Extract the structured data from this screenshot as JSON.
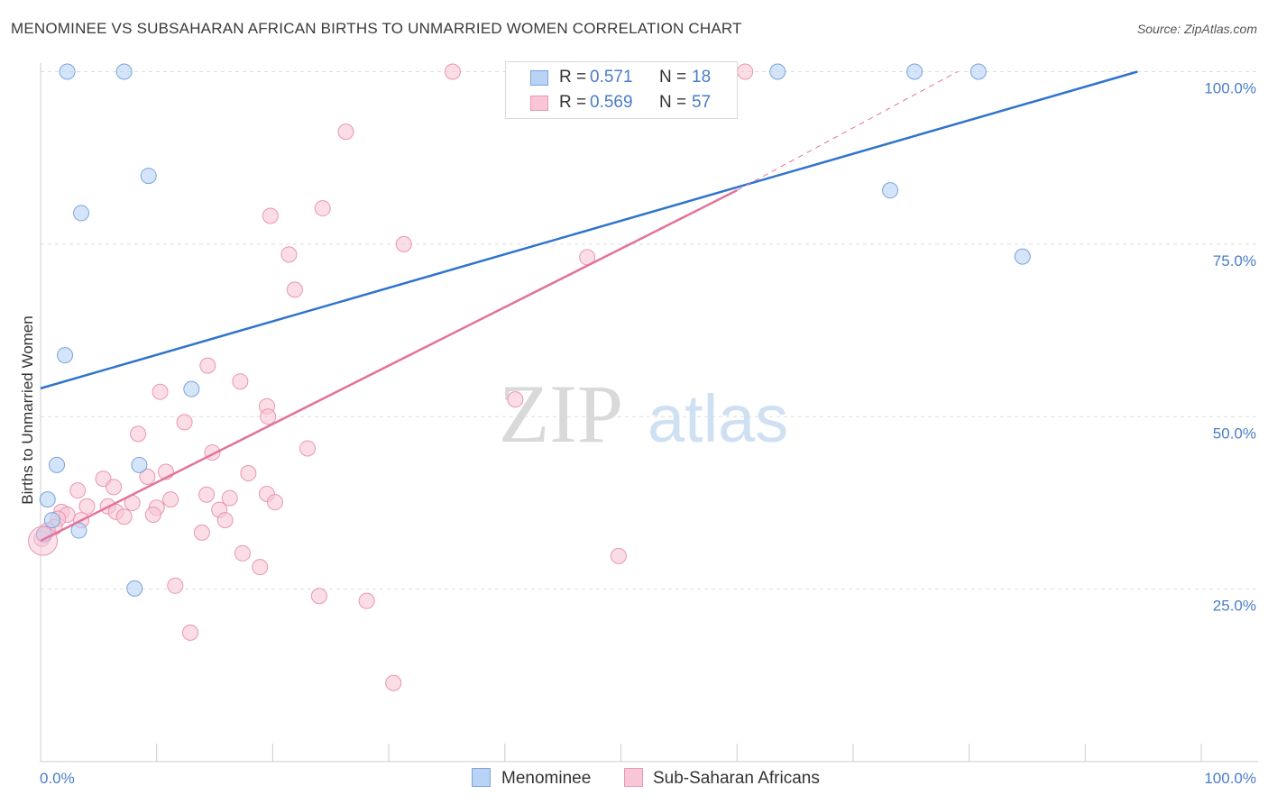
{
  "header": {
    "title": "MENOMINEE VS SUBSAHARAN AFRICAN BIRTHS TO UNMARRIED WOMEN CORRELATION CHART",
    "source": "Source: ZipAtlas.com"
  },
  "watermark": {
    "zip": "ZIP",
    "atlas": "atlas"
  },
  "colors": {
    "menominee_fill": "#b8d3f5",
    "menominee_stroke": "#7ba3dd",
    "menominee_line": "#2f74cc",
    "subsaharan_fill": "#f8c6d6",
    "subsaharan_stroke": "#e996b3",
    "subsaharan_line": "#e2739c",
    "tick_text": "#4a7cc9",
    "grid": "#dddddd"
  },
  "legend_top": {
    "rows": [
      {
        "r_label": "R =",
        "r_value": "0.571",
        "n_label": "N =",
        "n_value": "18"
      },
      {
        "r_label": "R =",
        "r_value": "0.569",
        "n_label": "N =",
        "n_value": "57"
      }
    ]
  },
  "legend_bottom": {
    "items": [
      {
        "label": "Menominee"
      },
      {
        "label": "Sub-Saharan Africans"
      }
    ]
  },
  "chart_data": {
    "type": "scatter",
    "title": "MENOMINEE VS SUBSAHARAN AFRICAN BIRTHS TO UNMARRIED WOMEN CORRELATION CHART",
    "xlabel": "",
    "ylabel": "Births to Unmarried Women",
    "xlim": [
      0,
      100
    ],
    "ylim": [
      0,
      102
    ],
    "x_ticks": [
      {
        "value": 0,
        "label": "0.0%"
      },
      {
        "value": 100,
        "label": "100.0%"
      }
    ],
    "y_ticks": [
      {
        "value": 25,
        "label": "25.0%"
      },
      {
        "value": 50,
        "label": "50.0%"
      },
      {
        "value": 75,
        "label": "75.0%"
      },
      {
        "value": 100,
        "label": "100.0%"
      }
    ],
    "grid": true,
    "legend_position": "top-center",
    "series": [
      {
        "name": "Menominee",
        "points": [
          [
            2.3,
            100
          ],
          [
            7.2,
            100
          ],
          [
            63.5,
            100
          ],
          [
            75.3,
            100
          ],
          [
            80.8,
            100
          ],
          [
            9.3,
            84.9
          ],
          [
            3.5,
            79.5
          ],
          [
            73.2,
            82.8
          ],
          [
            84.6,
            73.2
          ],
          [
            2.1,
            58.9
          ],
          [
            13.0,
            54.0
          ],
          [
            1.4,
            43.0
          ],
          [
            8.5,
            43.0
          ],
          [
            0.6,
            38.0
          ],
          [
            1.0,
            35.0
          ],
          [
            3.3,
            33.5
          ],
          [
            8.1,
            25.1
          ],
          [
            0.3,
            33.0
          ]
        ],
        "trend": {
          "x": [
            0,
            94.5
          ],
          "y": [
            54.1,
            100
          ]
        }
      },
      {
        "name": "Sub-Saharan Africans",
        "points": [
          [
            35.5,
            100
          ],
          [
            58.0,
            100
          ],
          [
            60.7,
            100
          ],
          [
            26.3,
            91.3
          ],
          [
            24.3,
            80.2
          ],
          [
            19.8,
            79.1
          ],
          [
            31.3,
            75.0
          ],
          [
            21.4,
            73.5
          ],
          [
            47.1,
            73.1
          ],
          [
            21.9,
            68.4
          ],
          [
            14.4,
            57.4
          ],
          [
            17.2,
            55.1
          ],
          [
            10.3,
            53.6
          ],
          [
            40.9,
            52.5
          ],
          [
            19.5,
            51.5
          ],
          [
            19.6,
            50.0
          ],
          [
            12.4,
            49.2
          ],
          [
            8.4,
            47.5
          ],
          [
            23.0,
            45.4
          ],
          [
            14.8,
            44.8
          ],
          [
            17.9,
            41.8
          ],
          [
            10.8,
            42.0
          ],
          [
            9.2,
            41.3
          ],
          [
            5.4,
            41.0
          ],
          [
            3.2,
            39.3
          ],
          [
            6.3,
            39.8
          ],
          [
            14.3,
            38.7
          ],
          [
            16.3,
            38.2
          ],
          [
            19.5,
            38.8
          ],
          [
            20.2,
            37.6
          ],
          [
            11.2,
            38.0
          ],
          [
            7.9,
            37.5
          ],
          [
            4.0,
            37.0
          ],
          [
            5.8,
            37.0
          ],
          [
            1.8,
            36.2
          ],
          [
            6.5,
            36.2
          ],
          [
            10.0,
            36.8
          ],
          [
            15.4,
            36.5
          ],
          [
            9.7,
            35.8
          ],
          [
            7.2,
            35.5
          ],
          [
            2.3,
            35.8
          ],
          [
            1.5,
            35.2
          ],
          [
            3.5,
            35.0
          ],
          [
            1.2,
            34.0
          ],
          [
            0.6,
            33.5
          ],
          [
            0.3,
            32.8
          ],
          [
            0.1,
            32.3
          ],
          [
            15.9,
            35.0
          ],
          [
            13.9,
            33.2
          ],
          [
            17.4,
            30.2
          ],
          [
            18.9,
            28.2
          ],
          [
            49.8,
            29.8
          ],
          [
            11.6,
            25.5
          ],
          [
            24.0,
            24.0
          ],
          [
            28.1,
            23.3
          ],
          [
            12.9,
            18.7
          ],
          [
            30.4,
            11.4
          ]
        ],
        "trend": {
          "x": [
            0,
            60.0
          ],
          "y": [
            32.0,
            82.8
          ]
        },
        "trend_extension": {
          "x": [
            60.0,
            79.0
          ],
          "y": [
            82.8,
            100
          ]
        }
      }
    ]
  }
}
